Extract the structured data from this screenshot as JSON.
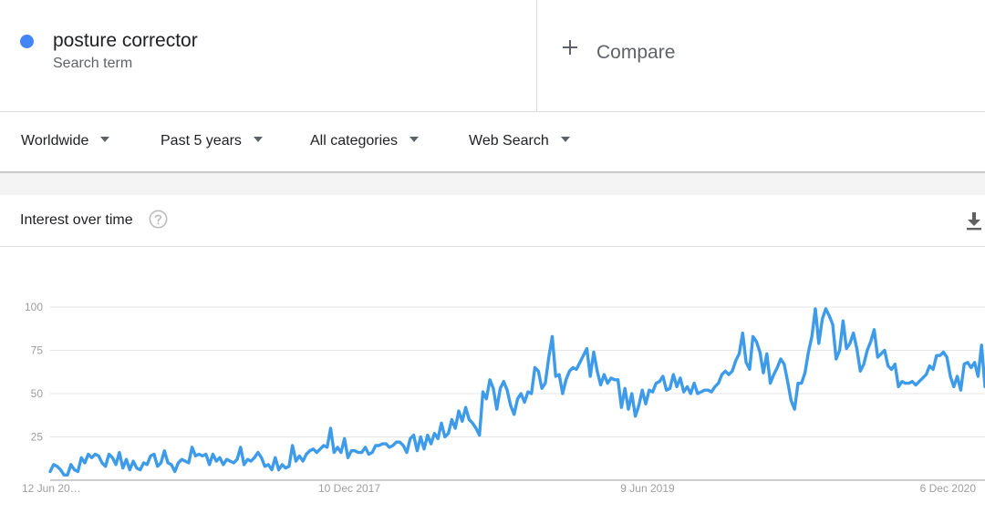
{
  "term": {
    "name": "posture corrector",
    "type": "Search term",
    "color": "#4285f4"
  },
  "compare": {
    "label": "Compare",
    "icon": "plus-icon"
  },
  "filters": {
    "region": "Worldwide",
    "period": "Past 5 years",
    "category": "All categories",
    "search_type": "Web Search"
  },
  "card": {
    "title": "Interest over time",
    "help_icon": "help-circle-icon",
    "download_icon": "download-icon"
  },
  "chart_data": {
    "type": "line",
    "title": "Interest over time",
    "xlabel": "",
    "ylabel": "",
    "ylim": [
      0,
      100
    ],
    "y_ticks": [
      25,
      50,
      75,
      100
    ],
    "x_tick_labels": [
      "12 Jun 20…",
      "10 Dec 2017",
      "9 Jun 2019",
      "6 Dec 2020"
    ],
    "grid": true,
    "line_color": "#3d9be9",
    "series": [
      {
        "name": "posture corrector",
        "values": [
          5,
          9,
          8,
          6,
          3,
          3,
          9,
          6,
          5,
          13,
          10,
          15,
          13,
          15,
          14,
          10,
          8,
          15,
          13,
          9,
          16,
          7,
          12,
          6,
          11,
          7,
          6,
          10,
          9,
          14,
          15,
          8,
          10,
          17,
          10,
          9,
          5,
          10,
          12,
          11,
          10,
          19,
          14,
          15,
          14,
          15,
          9,
          15,
          11,
          13,
          9,
          12,
          11,
          10,
          12,
          19,
          9,
          12,
          11,
          13,
          16,
          13,
          8,
          9,
          6,
          13,
          6,
          9,
          7,
          8,
          20,
          11,
          14,
          11,
          15,
          17,
          18,
          16,
          18,
          20,
          19,
          30,
          16,
          19,
          16,
          24,
          13,
          17,
          17,
          16,
          16,
          19,
          15,
          16,
          20,
          20,
          21,
          21,
          19,
          20,
          22,
          22,
          20,
          16,
          24,
          26,
          17,
          25,
          18,
          26,
          21,
          27,
          24,
          33,
          25,
          27,
          35,
          30,
          40,
          34,
          42,
          35,
          33,
          30,
          26,
          51,
          47,
          58,
          53,
          41,
          53,
          57,
          52,
          43,
          38,
          47,
          50,
          45,
          51,
          50,
          65,
          63,
          53,
          56,
          71,
          83,
          60,
          61,
          50,
          58,
          63,
          65,
          64,
          68,
          72,
          76,
          60,
          74,
          63,
          55,
          61,
          56,
          59,
          58,
          58,
          42,
          53,
          41,
          50,
          37,
          43,
          52,
          44,
          52,
          51,
          56,
          57,
          60,
          52,
          53,
          61,
          54,
          59,
          51,
          54,
          50,
          56,
          50,
          51,
          52,
          52,
          51,
          54,
          56,
          61,
          63,
          61,
          63,
          69,
          73,
          85,
          68,
          64,
          83,
          80,
          74,
          62,
          73,
          56,
          61,
          65,
          70,
          67,
          57,
          46,
          41,
          56,
          56,
          62,
          74,
          83,
          99,
          79,
          93,
          99,
          95,
          90,
          70,
          75,
          92,
          76,
          79,
          85,
          76,
          63,
          67,
          75,
          80,
          87,
          71,
          73,
          75,
          66,
          64,
          67,
          54,
          57,
          56,
          56,
          57,
          55,
          57,
          59,
          61,
          66,
          64,
          72,
          72,
          74,
          71,
          60,
          54,
          60,
          52,
          67,
          68,
          65,
          68,
          60,
          78,
          54
        ]
      }
    ]
  }
}
